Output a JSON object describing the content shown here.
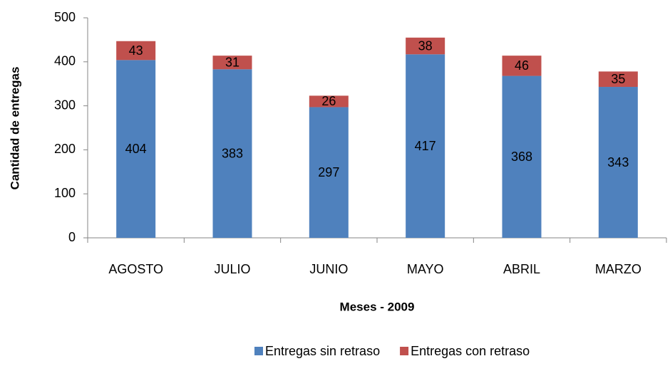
{
  "chart_data": {
    "type": "bar",
    "stacked": true,
    "x_label": "Meses - 2009",
    "y_label": "Cantidad de entregas",
    "categories": [
      "AGOSTO",
      "JULIO",
      "JUNIO",
      "MAYO",
      "ABRIL",
      "MARZO"
    ],
    "series": [
      {
        "name": "Entregas sin retraso",
        "color": "#4f81bd",
        "values": [
          404,
          383,
          297,
          417,
          368,
          343
        ]
      },
      {
        "name": "Entregas con retraso",
        "color": "#c0504d",
        "values": [
          43,
          31,
          26,
          38,
          46,
          35
        ]
      }
    ],
    "ylim": [
      0,
      500
    ],
    "yticks": [
      0,
      100,
      200,
      300,
      400,
      500
    ],
    "grid": false,
    "legend": "bottom"
  }
}
